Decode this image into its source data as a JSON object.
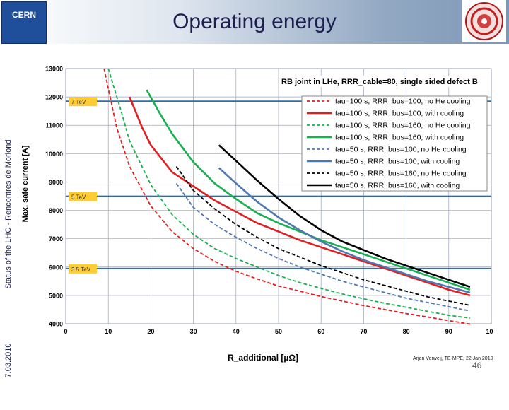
{
  "slide": {
    "title": "Operating energy",
    "side_text": "Status of the LHC - Rencontres de Moriond",
    "date": "7.03.2010",
    "credit": "Arjan Verweij, TE-MPE, 22 Jan 2010",
    "page_number": "46",
    "logo_text": "CERN"
  },
  "colors": {
    "red": "#e02020",
    "green": "#18b050",
    "blue": "#5078b0",
    "black": "#000000",
    "hline": "#2a70b0",
    "label_bg": "#ffcc33"
  },
  "chart_data": {
    "type": "line",
    "title": "RB joint in LHe, RRR_cable=80, single sided defect B",
    "xlabel": "R_additional [µΩ]",
    "ylabel": "Max. safe current [A]",
    "xlim": [
      0,
      100
    ],
    "ylim": [
      4000,
      13000
    ],
    "xticks": [
      "0",
      "10",
      "20",
      "30",
      "40",
      "50",
      "60",
      "70",
      "80",
      "90",
      "100"
    ],
    "yticks": [
      "4000",
      "5000",
      "6000",
      "7000",
      "8000",
      "9000",
      "10000",
      "11000",
      "12000",
      "13000"
    ],
    "hlines": [
      {
        "value": 11850,
        "label": "7 TeV"
      },
      {
        "value": 8500,
        "label": "5 TeV"
      },
      {
        "value": 5950,
        "label": "3.5 TeV"
      }
    ],
    "series": [
      {
        "name": "tau=100 s, RRR_bus=100, no He cooling",
        "color": "red",
        "dash": true,
        "x": [
          9,
          12,
          15,
          20,
          25,
          30,
          35,
          40,
          45,
          50,
          55,
          60,
          65,
          70,
          75,
          80,
          85,
          90,
          95
        ],
        "y": [
          13000,
          10900,
          9550,
          8150,
          7250,
          6650,
          6200,
          5850,
          5580,
          5330,
          5150,
          4960,
          4800,
          4640,
          4500,
          4360,
          4240,
          4110,
          3990
        ]
      },
      {
        "name": "tau=100 s, RRR_bus=100, with cooling",
        "color": "red",
        "dash": false,
        "x": [
          15,
          18,
          20,
          25,
          30,
          35,
          40,
          45,
          50,
          55,
          60,
          65,
          70,
          75,
          80,
          85,
          90,
          95
        ],
        "y": [
          12000,
          10900,
          10300,
          9350,
          8850,
          8350,
          7950,
          7550,
          7250,
          6950,
          6700,
          6450,
          6200,
          5950,
          5700,
          5450,
          5200,
          5000
        ]
      },
      {
        "name": "tau=100 s, RRR_bus=160, no He cooling",
        "color": "green",
        "dash": true,
        "x": [
          10,
          13,
          15,
          20,
          25,
          30,
          35,
          40,
          45,
          50,
          55,
          60,
          65,
          70,
          75,
          80,
          85,
          90,
          95
        ],
        "y": [
          13000,
          11500,
          10450,
          8900,
          7850,
          7150,
          6650,
          6300,
          6000,
          5700,
          5450,
          5250,
          5050,
          4880,
          4720,
          4580,
          4440,
          4300,
          4200
        ]
      },
      {
        "name": "tau=100 s, RRR_bus=160, with cooling",
        "color": "green",
        "dash": false,
        "x": [
          19,
          22,
          25,
          30,
          35,
          40,
          45,
          50,
          55,
          60,
          65,
          70,
          75,
          80,
          85,
          90,
          95
        ],
        "y": [
          12250,
          11450,
          10700,
          9700,
          8950,
          8400,
          7900,
          7550,
          7250,
          6950,
          6700,
          6450,
          6200,
          5950,
          5700,
          5450,
          5200
        ]
      },
      {
        "name": "tau=50 s, RRR_bus=100, no He cooling",
        "color": "blue",
        "dash": true,
        "x": [
          26,
          30,
          35,
          40,
          45,
          50,
          55,
          60,
          65,
          70,
          75,
          80,
          85,
          90,
          95
        ],
        "y": [
          8950,
          8100,
          7500,
          7050,
          6650,
          6300,
          6000,
          5750,
          5500,
          5300,
          5100,
          4900,
          4750,
          4600,
          4450
        ]
      },
      {
        "name": "tau=50 s, RRR_bus=100, with cooling",
        "color": "blue",
        "dash": false,
        "x": [
          36,
          40,
          45,
          50,
          55,
          60,
          65,
          70,
          75,
          80,
          85,
          90,
          95
        ],
        "y": [
          9500,
          8950,
          8300,
          7750,
          7300,
          6900,
          6550,
          6250,
          6000,
          5750,
          5500,
          5300,
          5100
        ]
      },
      {
        "name": "tau=50 s, RRR_bus=160, no He cooling",
        "color": "black",
        "dash": true,
        "x": [
          26,
          30,
          35,
          40,
          45,
          50,
          55,
          60,
          65,
          70,
          75,
          80,
          85,
          90,
          95
        ],
        "y": [
          9550,
          8700,
          8050,
          7500,
          7050,
          6650,
          6350,
          6050,
          5800,
          5550,
          5350,
          5150,
          4950,
          4800,
          4650
        ]
      },
      {
        "name": "tau=50 s, RRR_bus=160, with cooling",
        "color": "black",
        "dash": false,
        "x": [
          36,
          40,
          45,
          50,
          55,
          60,
          65,
          70,
          75,
          80,
          85,
          90,
          95
        ],
        "y": [
          10300,
          9750,
          9050,
          8400,
          7800,
          7300,
          6900,
          6600,
          6300,
          6050,
          5800,
          5550,
          5300
        ]
      }
    ]
  }
}
